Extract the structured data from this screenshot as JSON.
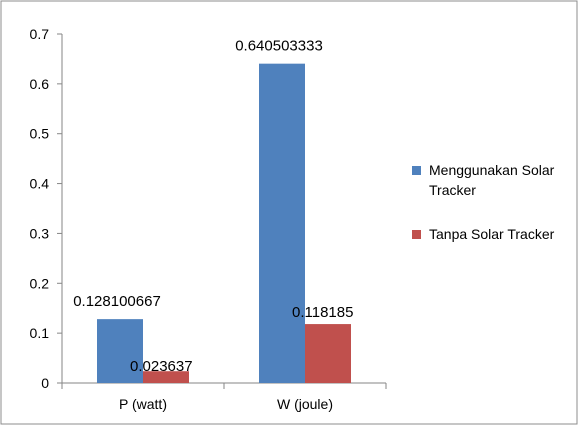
{
  "chart_data": {
    "type": "bar",
    "categories": [
      "P (watt)",
      "W (joule)"
    ],
    "series": [
      {
        "name": "Menggunakan Solar Tracker",
        "legend_lines": [
          "Menggunakan Solar",
          "Tracker"
        ],
        "values": [
          0.128100667,
          0.640503333
        ],
        "labels": [
          "0.128100667",
          "0.640503333"
        ],
        "color": "#4F81BD"
      },
      {
        "name": "Tanpa Solar Tracker",
        "legend_lines": [
          "Tanpa Solar Tracker"
        ],
        "values": [
          0.023637,
          0.118185
        ],
        "labels": [
          "0.023637",
          "0.118185"
        ],
        "color": "#C0504D"
      }
    ],
    "ylim": [
      0,
      0.7
    ],
    "yticks": [
      0,
      0.1,
      0.2,
      0.3,
      0.4,
      0.5,
      0.6,
      0.7
    ],
    "ytick_labels": [
      "0",
      "0.1",
      "0.2",
      "0.3",
      "0.4",
      "0.5",
      "0.6",
      "0.7"
    ],
    "grid": false,
    "legend_position": "right",
    "title": "",
    "xlabel": "",
    "ylabel": ""
  }
}
